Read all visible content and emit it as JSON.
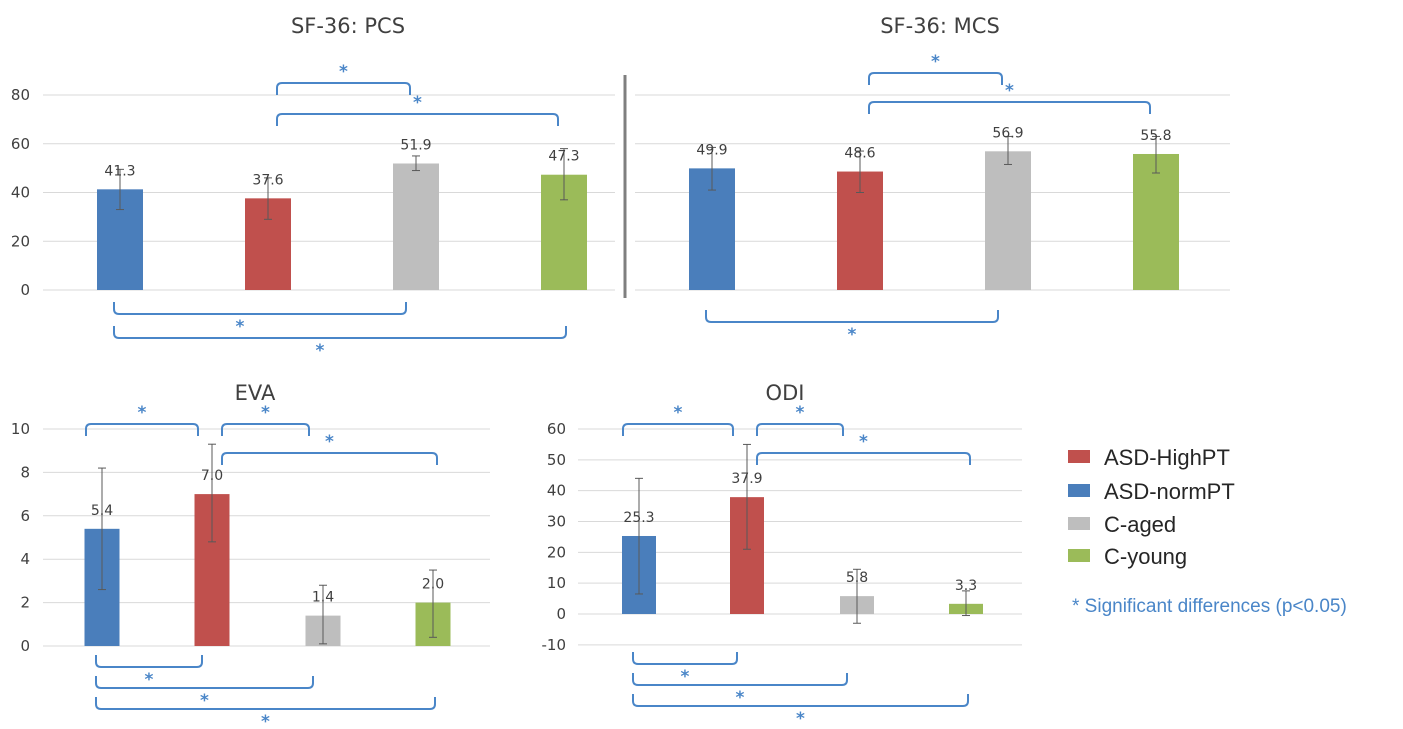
{
  "colors": {
    "ASD-normPT": "#4a7ebb",
    "ASD-HighPT": "#c0504d",
    "C-aged": "#bebebe",
    "C-young": "#9bbb59",
    "bracket": "#4a86c8",
    "grid": "#d9d9d9",
    "divider": "#7f7f7f"
  },
  "legend": {
    "items": [
      {
        "label": "ASD-HighPT",
        "color": "#c0504d"
      },
      {
        "label": "ASD-normPT",
        "color": "#4a7ebb"
      },
      {
        "label": "C-aged",
        "color": "#bebebe"
      },
      {
        "label": "C-young",
        "color": "#9bbb59"
      }
    ],
    "note": "* Significant differences (p<0.05)"
  },
  "chart_data": [
    {
      "id": "pcs",
      "type": "bar",
      "title": "SF-36: PCS",
      "categories": [
        "ASD-normPT",
        "ASD-HighPT",
        "C-aged",
        "C-young"
      ],
      "values": [
        41.3,
        37.6,
        51.9,
        47.3
      ],
      "labels": [
        "41.3",
        "37.6",
        "51.9",
        "47.3"
      ],
      "errors": [
        [
          33,
          49.5
        ],
        [
          29,
          46
        ],
        [
          49,
          55
        ],
        [
          37,
          58
        ]
      ],
      "yticks": [
        0,
        20,
        40,
        60,
        80
      ],
      "ylim": [
        0,
        80
      ],
      "grid": true,
      "significance": [
        {
          "from": 2,
          "to": 3,
          "side": "above"
        },
        {
          "from": 2,
          "to": 4,
          "side": "above"
        },
        {
          "from": 1,
          "to": 3,
          "side": "below"
        },
        {
          "from": 1,
          "to": 4,
          "side": "below"
        }
      ]
    },
    {
      "id": "mcs",
      "type": "bar",
      "title": "SF-36: MCS",
      "categories": [
        "ASD-normPT",
        "ASD-HighPT",
        "C-aged",
        "C-young"
      ],
      "values": [
        49.9,
        48.6,
        56.9,
        55.8
      ],
      "labels": [
        "49.9",
        "48.6",
        "56.9",
        "55.8"
      ],
      "errors": [
        [
          41,
          58.5
        ],
        [
          40,
          57
        ],
        [
          51.5,
          63
        ],
        [
          48,
          63
        ]
      ],
      "yticks": [
        0,
        20,
        40,
        60,
        80
      ],
      "ylim": [
        0,
        80
      ],
      "grid": true,
      "significance": [
        {
          "from": 2,
          "to": 3,
          "side": "above"
        },
        {
          "from": 2,
          "to": 4,
          "side": "above"
        },
        {
          "from": 1,
          "to": 3,
          "side": "below"
        }
      ]
    },
    {
      "id": "eva",
      "type": "bar",
      "title": "EVA",
      "categories": [
        "ASD-normPT",
        "ASD-HighPT",
        "C-aged",
        "C-young"
      ],
      "values": [
        5.4,
        7.0,
        1.4,
        2.0
      ],
      "labels": [
        "5.4",
        "7.0",
        "1.4",
        "2.0"
      ],
      "errors": [
        [
          2.6,
          8.2
        ],
        [
          4.8,
          9.3
        ],
        [
          0.1,
          2.8
        ],
        [
          0.4,
          3.5
        ]
      ],
      "yticks": [
        0,
        2,
        4,
        6,
        8,
        10
      ],
      "ylim": [
        0,
        10
      ],
      "grid": true,
      "significance": [
        {
          "from": 1,
          "to": 2,
          "side": "above"
        },
        {
          "from": 2,
          "to": 3,
          "side": "above"
        },
        {
          "from": 2,
          "to": 4,
          "side": "above"
        },
        {
          "from": 1,
          "to": 2,
          "side": "below"
        },
        {
          "from": 1,
          "to": 3,
          "side": "below"
        },
        {
          "from": 1,
          "to": 4,
          "side": "below"
        }
      ]
    },
    {
      "id": "odi",
      "type": "bar",
      "title": "ODI",
      "categories": [
        "ASD-normPT",
        "ASD-HighPT",
        "C-aged",
        "C-young"
      ],
      "values": [
        25.3,
        37.9,
        5.8,
        3.3
      ],
      "labels": [
        "25.3",
        "37.9",
        "5.8",
        "3.3"
      ],
      "errors": [
        [
          6.5,
          44
        ],
        [
          21,
          55
        ],
        [
          -3,
          14.5
        ],
        [
          -0.5,
          7.5
        ]
      ],
      "yticks": [
        -10,
        0,
        10,
        20,
        30,
        40,
        50,
        60
      ],
      "ylim": [
        -10,
        60
      ],
      "grid": true,
      "significance": [
        {
          "from": 1,
          "to": 2,
          "side": "above"
        },
        {
          "from": 2,
          "to": 3,
          "side": "above"
        },
        {
          "from": 2,
          "to": 4,
          "side": "above"
        },
        {
          "from": 1,
          "to": 2,
          "side": "below"
        },
        {
          "from": 1,
          "to": 3,
          "side": "below"
        },
        {
          "from": 1,
          "to": 4,
          "side": "below"
        }
      ]
    }
  ]
}
